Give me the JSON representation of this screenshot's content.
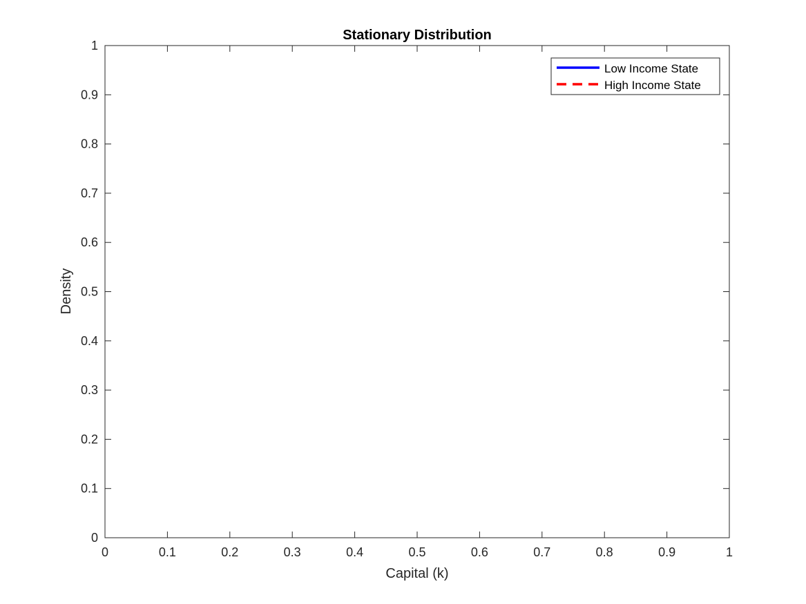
{
  "chart_data": {
    "type": "line",
    "title": "Stationary Distribution",
    "xlabel": "Capital (k)",
    "ylabel": "Density",
    "xlim": [
      0,
      1
    ],
    "ylim": [
      0,
      1
    ],
    "xticks": [
      "0",
      "0.1",
      "0.2",
      "0.3",
      "0.4",
      "0.5",
      "0.6",
      "0.7",
      "0.8",
      "0.9",
      "1"
    ],
    "yticks": [
      "0",
      "0.1",
      "0.2",
      "0.3",
      "0.4",
      "0.5",
      "0.6",
      "0.7",
      "0.8",
      "0.9",
      "1"
    ],
    "grid": false,
    "legend_position": "top-right",
    "series": [
      {
        "name": "Low Income State",
        "color": "#0000ff",
        "style": "solid",
        "x": [],
        "y": []
      },
      {
        "name": "High Income State",
        "color": "#ff0000",
        "style": "dashed",
        "x": [],
        "y": []
      }
    ]
  }
}
